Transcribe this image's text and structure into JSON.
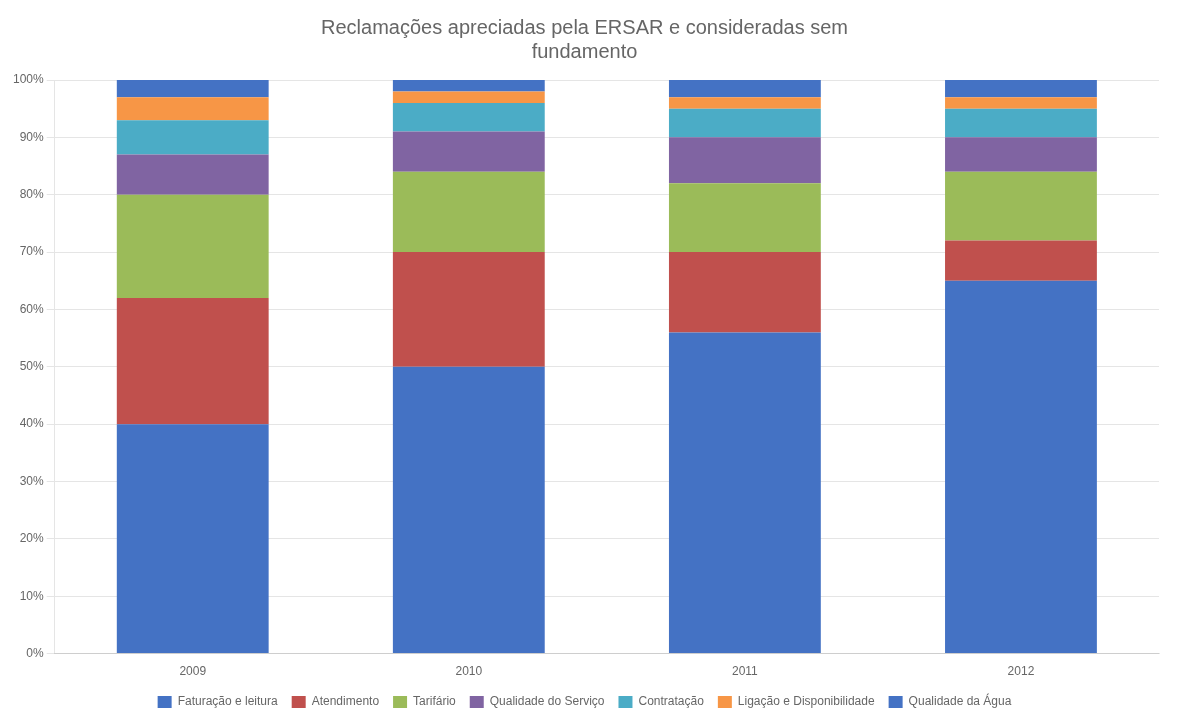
{
  "chart_data": {
    "type": "bar",
    "title": "Reclamações apreciadas pela ERSAR e consideradas sem\nfundamento",
    "categories": [
      "2009",
      "2010",
      "2011",
      "2012"
    ],
    "series": [
      {
        "name": "Faturação e leitura",
        "color": "#4472C4",
        "values": [
          0.4,
          0.5,
          0.56,
          0.65
        ]
      },
      {
        "name": "Atendimento",
        "color": "#C0504D",
        "values": [
          0.22,
          0.2,
          0.14,
          0.07
        ]
      },
      {
        "name": "Tarifário",
        "color": "#9BBB59",
        "values": [
          0.18,
          0.14,
          0.12,
          0.12
        ]
      },
      {
        "name": "Qualidade do Serviço",
        "color": "#8064A2",
        "values": [
          0.07,
          0.07,
          0.08,
          0.06
        ]
      },
      {
        "name": "Contratação",
        "color": "#4BACC6",
        "values": [
          0.06,
          0.05,
          0.05,
          0.05
        ]
      },
      {
        "name": "Ligação e Disponibilidade",
        "color": "#F79646",
        "values": [
          0.04,
          0.02,
          0.02,
          0.02
        ]
      },
      {
        "name": "Qualidade da Água",
        "color": "#4472C4",
        "values": [
          0.03,
          0.02,
          0.03,
          0.03
        ]
      }
    ],
    "stacked": true,
    "ylim": [
      0,
      1.0
    ],
    "yticks": [
      {
        "value": 0,
        "label": "0%"
      },
      {
        "value": 0.1,
        "label": "10%"
      },
      {
        "value": 0.2,
        "label": "20%"
      },
      {
        "value": 0.3,
        "label": "30%"
      },
      {
        "value": 0.4,
        "label": "40%"
      },
      {
        "value": 0.5,
        "label": "50%"
      },
      {
        "value": 0.6,
        "label": "60%"
      },
      {
        "value": 0.7,
        "label": "70%"
      },
      {
        "value": 0.8,
        "label": "80%"
      },
      {
        "value": 0.9,
        "label": "90%"
      },
      {
        "value": 1.0,
        "label": "100%"
      }
    ],
    "grid": true,
    "legend": "bottom"
  }
}
